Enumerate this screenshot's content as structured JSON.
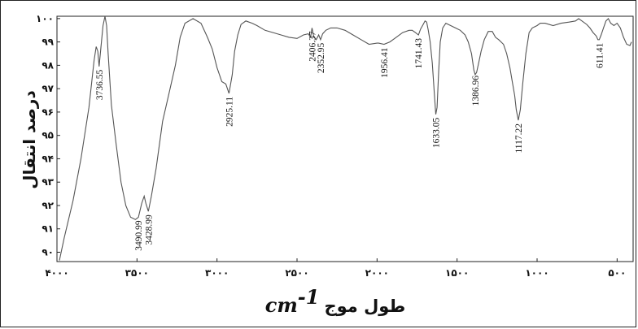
{
  "chart_data": {
    "type": "line",
    "ylabel": "درصد انتقال",
    "xlabel_text": "طول موج",
    "xlabel_unit": "cm",
    "xlabel_unit_exp": "-1",
    "xlim": [
      4000,
      400
    ],
    "ylim": [
      89.6,
      100.1
    ],
    "x_ticks": [
      {
        "value": 4000,
        "label": "۴۰۰۰"
      },
      {
        "value": 3500,
        "label": "۳۵۰۰"
      },
      {
        "value": 3000,
        "label": "۳۰۰۰"
      },
      {
        "value": 2500,
        "label": "۲۵۰۰"
      },
      {
        "value": 2000,
        "label": "۲۰۰۰"
      },
      {
        "value": 1500,
        "label": "۱۵۰۰"
      },
      {
        "value": 1000,
        "label": "۱۰۰۰"
      },
      {
        "value": 500,
        "label": "۵۰۰"
      }
    ],
    "y_ticks": [
      {
        "value": 100,
        "label": "۱۰۰"
      },
      {
        "value": 99,
        "label": "۹۹"
      },
      {
        "value": 98,
        "label": "۹۸"
      },
      {
        "value": 97,
        "label": "۹۷"
      },
      {
        "value": 96,
        "label": "۹۶"
      },
      {
        "value": 95,
        "label": "۹۵"
      },
      {
        "value": 94,
        "label": "۹۴"
      },
      {
        "value": 93,
        "label": "۹۳"
      },
      {
        "value": 92,
        "label": "۹۲"
      },
      {
        "value": 91,
        "label": "۹۱"
      },
      {
        "value": 90,
        "label": "۹۰"
      }
    ],
    "series": [
      {
        "x": [
          3985,
          3955,
          3900,
          3850,
          3800,
          3768,
          3755,
          3745,
          3736.55,
          3725,
          3712,
          3700,
          3690,
          3680,
          3660,
          3630,
          3600,
          3570,
          3540,
          3510,
          3490.99,
          3470,
          3455,
          3445,
          3428.99,
          3410,
          3380,
          3340,
          3300,
          3260,
          3230,
          3200,
          3150,
          3100,
          3060,
          3030,
          3000,
          2970,
          2945,
          2925.11,
          2905,
          2890,
          2870,
          2850,
          2820,
          2780,
          2750,
          2700,
          2650,
          2600,
          2550,
          2500,
          2460,
          2430,
          2415,
          2406.37,
          2395,
          2380,
          2365,
          2352.95,
          2340,
          2320,
          2290,
          2250,
          2200,
          2150,
          2100,
          2050,
          2000,
          1990,
          1956.41,
          1920,
          1880,
          1840,
          1800,
          1780,
          1760,
          1741.43,
          1728,
          1712,
          1700,
          1690,
          1680,
          1668,
          1655,
          1640,
          1633.05,
          1625,
          1615,
          1605,
          1590,
          1570,
          1540,
          1510,
          1480,
          1450,
          1430,
          1410,
          1395,
          1386.96,
          1378,
          1365,
          1350,
          1330,
          1305,
          1280,
          1260,
          1240,
          1210,
          1190,
          1170,
          1155,
          1140,
          1130,
          1117.22,
          1105,
          1090,
          1070,
          1050,
          1030,
          1000,
          980,
          950,
          900,
          850,
          800,
          760,
          740,
          720,
          690,
          670,
          650,
          630,
          620,
          611.41,
          600,
          585,
          570,
          555,
          540,
          520,
          500,
          480,
          460,
          440,
          420,
          410
        ],
        "y": [
          89.65,
          90.6,
          92.2,
          94.0,
          96.2,
          98.2,
          98.8,
          98.6,
          97.95,
          98.8,
          99.7,
          100.1,
          99.7,
          98.5,
          96.3,
          94.6,
          93.0,
          92.0,
          91.5,
          91.4,
          91.5,
          92.1,
          92.4,
          92.1,
          91.75,
          92.4,
          93.6,
          95.6,
          96.8,
          98.0,
          99.2,
          99.8,
          100.0,
          99.8,
          99.2,
          98.7,
          97.9,
          97.3,
          97.2,
          96.8,
          97.6,
          98.6,
          99.3,
          99.75,
          99.9,
          99.8,
          99.7,
          99.5,
          99.4,
          99.3,
          99.2,
          99.15,
          99.3,
          99.35,
          99.2,
          99.6,
          99.2,
          99.1,
          99.3,
          99.1,
          99.35,
          99.5,
          99.6,
          99.6,
          99.5,
          99.3,
          99.1,
          98.9,
          98.95,
          98.95,
          98.9,
          99.0,
          99.2,
          99.4,
          99.5,
          99.5,
          99.4,
          99.3,
          99.55,
          99.75,
          99.9,
          99.85,
          99.5,
          99.0,
          98.1,
          96.6,
          95.9,
          96.2,
          97.7,
          99.0,
          99.6,
          99.8,
          99.7,
          99.6,
          99.5,
          99.3,
          99.0,
          98.5,
          97.8,
          97.6,
          97.7,
          98.1,
          98.6,
          99.1,
          99.45,
          99.45,
          99.2,
          99.1,
          98.9,
          98.5,
          97.9,
          97.3,
          96.7,
          96.1,
          95.65,
          96.1,
          97.2,
          98.5,
          99.4,
          99.6,
          99.7,
          99.8,
          99.8,
          99.7,
          99.8,
          99.85,
          99.9,
          100.0,
          99.9,
          99.75,
          99.6,
          99.4,
          99.25,
          99.1,
          99.1,
          99.3,
          99.6,
          99.9,
          100.0,
          99.8,
          99.7,
          99.8,
          99.6,
          99.2,
          98.9,
          98.85,
          99.0
        ]
      }
    ],
    "annotations": [
      {
        "x": 3736.55,
        "label": "3736.55",
        "at": 97.95
      },
      {
        "x": 3490.99,
        "label": "3490.99",
        "at": 91.5
      },
      {
        "x": 3428.99,
        "label": "3428.99",
        "at": 91.75
      },
      {
        "x": 2925.11,
        "label": "2925.11",
        "at": 96.8
      },
      {
        "x": 2406.37,
        "label": "2406.37",
        "at": 99.6
      },
      {
        "x": 2352.95,
        "label": "2352.95",
        "at": 99.1
      },
      {
        "x": 1956.41,
        "label": "1956.41",
        "at": 98.9
      },
      {
        "x": 1741.43,
        "label": "1741.43",
        "at": 99.3
      },
      {
        "x": 1633.05,
        "label": "1633.05",
        "at": 95.9
      },
      {
        "x": 1386.96,
        "label": "1386.96",
        "at": 97.7
      },
      {
        "x": 1117.22,
        "label": "1117.22",
        "at": 95.65
      },
      {
        "x": 611.41,
        "label": "611.41",
        "at": 99.1
      }
    ],
    "grid": false,
    "legend": "none"
  }
}
